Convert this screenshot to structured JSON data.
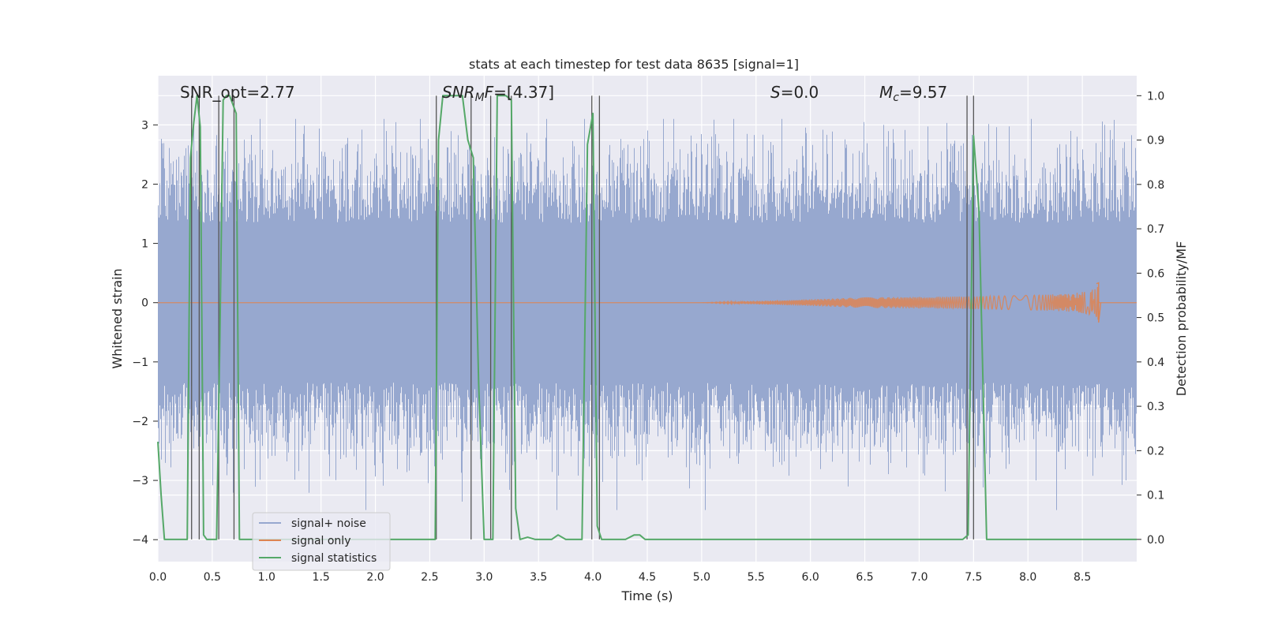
{
  "chart_data": {
    "type": "line",
    "title": "stats at each timestep for test data 8635 [signal=1]",
    "xlabel": "Time (s)",
    "ylabel": "Whitened strain",
    "ylabel_right": "Detection probability/MF",
    "xlim": [
      0,
      9
    ],
    "ylim": [
      -4.37,
      3.83
    ],
    "ylim_right": [
      -0.05,
      1.045
    ],
    "x_ticks": [
      "0.0",
      "0.5",
      "1.0",
      "1.5",
      "2.0",
      "2.5",
      "3.0",
      "3.5",
      "4.0",
      "4.5",
      "5.0",
      "5.5",
      "6.0",
      "6.5",
      "7.0",
      "7.5",
      "8.0",
      "8.5"
    ],
    "y_ticks": [
      "3",
      "2",
      "1",
      "0",
      "−1",
      "−2",
      "−3",
      "−4"
    ],
    "y_ticks_right": [
      "1.0",
      "0.9",
      "0.8",
      "0.7",
      "0.6",
      "0.5",
      "0.4",
      "0.3",
      "0.2",
      "0.1",
      "0.0"
    ],
    "grid": true,
    "legend_position": "lower-left",
    "annotations": {
      "snr_opt": "SNR_opt=2.77",
      "snr_mf_main": "SNR",
      "snr_mf_sub": "M",
      "snr_mf_f": "F",
      "snr_mf_value": "=[4.37]",
      "s_italic": "S",
      "s_value": "=0.0",
      "mc_main": "M",
      "mc_sub": "c",
      "mc_value": "=9.57"
    },
    "series": [
      {
        "name": "signal+ noise",
        "color": "#97a8cf",
        "kind": "noise",
        "amplitude_envelope": [
          -3.5,
          3.1
        ]
      },
      {
        "name": "signal only",
        "color": "#dd8452",
        "kind": "chirp",
        "merger_time": 8.65,
        "peak_amplitude": 0.32
      },
      {
        "name": "signal statistics",
        "color": "#55a868",
        "axis": "right",
        "x": [
          0.0,
          0.03,
          0.06,
          0.09,
          0.12,
          0.15,
          0.18,
          0.21,
          0.24,
          0.27,
          0.3,
          0.33,
          0.36,
          0.39,
          0.42,
          0.45,
          0.48,
          0.51,
          0.54,
          0.57,
          0.6,
          0.63,
          0.66,
          0.69,
          0.72,
          0.75,
          0.78,
          0.81,
          0.84,
          0.87,
          0.9,
          1.0,
          1.5,
          2.0,
          2.5,
          2.55,
          2.58,
          2.62,
          2.66,
          2.7,
          2.75,
          2.8,
          2.85,
          2.9,
          2.95,
          3.0,
          3.05,
          3.08,
          3.12,
          3.16,
          3.2,
          3.25,
          3.29,
          3.33,
          3.4,
          3.47,
          3.55,
          3.62,
          3.68,
          3.75,
          3.82,
          3.9,
          3.95,
          4.0,
          4.04,
          4.08,
          4.13,
          4.2,
          4.3,
          4.38,
          4.43,
          4.48,
          4.55,
          4.6,
          5.0,
          6.0,
          7.0,
          7.4,
          7.45,
          7.5,
          7.55,
          7.62,
          7.7,
          8.0,
          8.5,
          9.0
        ],
        "y": [
          0.22,
          0.1,
          0.0,
          0.0,
          0.0,
          0.0,
          0.0,
          0.0,
          0.0,
          0.0,
          0.86,
          0.94,
          1.0,
          0.93,
          0.01,
          0.0,
          0.0,
          0.0,
          0.0,
          0.45,
          0.99,
          1.0,
          1.0,
          0.98,
          0.96,
          0.0,
          0.0,
          0.0,
          0.0,
          0.0,
          0.0,
          0.0,
          0.0,
          0.0,
          0.0,
          0.0,
          0.9,
          1.0,
          1.0,
          1.0,
          1.0,
          1.0,
          0.9,
          0.86,
          0.35,
          0.0,
          0.0,
          0.0,
          1.0,
          1.0,
          1.0,
          0.99,
          0.07,
          0.0,
          0.005,
          0.0,
          0.0,
          0.0,
          0.01,
          0.0,
          0.0,
          0.0,
          0.89,
          0.96,
          0.03,
          0.0,
          0.0,
          0.0,
          0.0,
          0.01,
          0.01,
          0.0,
          0.0,
          0.0,
          0.0,
          0.0,
          0.0,
          0.0,
          0.01,
          0.91,
          0.74,
          0.0,
          0.0,
          0.0,
          0.0,
          0.0
        ]
      }
    ],
    "vertical_lines": [
      0.31,
      0.38,
      0.56,
      0.7,
      2.56,
      2.88,
      3.06,
      3.25,
      3.99,
      4.06,
      7.44,
      7.5
    ]
  }
}
